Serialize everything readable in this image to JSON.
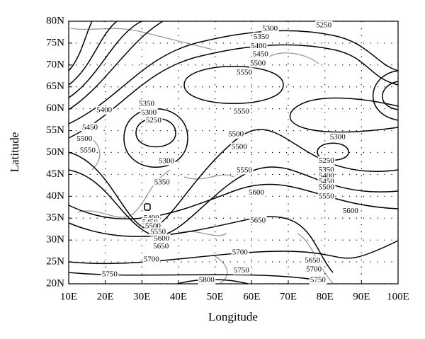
{
  "chart_data": {
    "type": "contour",
    "xlabel": "Longitude",
    "ylabel": "Latitude",
    "xlim": [
      10,
      100
    ],
    "xticks": [
      {
        "value": 10,
        "label": "10E"
      },
      {
        "value": 20,
        "label": "20E"
      },
      {
        "value": 30,
        "label": "30E"
      },
      {
        "value": 40,
        "label": "40E"
      },
      {
        "value": 50,
        "label": "50E"
      },
      {
        "value": 60,
        "label": "60E"
      },
      {
        "value": 70,
        "label": "70E"
      },
      {
        "value": 80,
        "label": "80E"
      },
      {
        "value": 90,
        "label": "90E"
      },
      {
        "value": 100,
        "label": "100E"
      }
    ],
    "ylim": [
      20,
      80
    ],
    "yticks": [
      {
        "value": 20,
        "label": "20N"
      },
      {
        "value": 25,
        "label": "25N"
      },
      {
        "value": 30,
        "label": "30N"
      },
      {
        "value": 35,
        "label": "35N"
      },
      {
        "value": 40,
        "label": "40N"
      },
      {
        "value": 45,
        "label": "45N"
      },
      {
        "value": 50,
        "label": "50N"
      },
      {
        "value": 55,
        "label": "55N"
      },
      {
        "value": 60,
        "label": "60N"
      },
      {
        "value": 65,
        "label": "65N"
      },
      {
        "value": 70,
        "label": "70N"
      },
      {
        "value": 75,
        "label": "75N"
      },
      {
        "value": 80,
        "label": "80N"
      }
    ],
    "grid": true,
    "contour_labels": {
      "x": [
        65.0,
        79.7,
        62.6,
        61.9,
        62.4,
        61.7,
        58.0,
        57.2,
        19.7,
        31.3,
        31.9,
        33.2,
        15.8,
        14.3,
        15.2,
        55.7,
        56.6,
        83.5,
        36.7,
        80.4,
        80.4,
        58.0,
        80.4,
        80.4,
        35.5,
        80.4,
        80.4,
        61.3,
        87.0,
        61.7,
        32.6,
        32.2,
        33.0,
        34.4,
        35.4,
        35.2,
        32.6,
        56.8,
        76.6,
        77.0,
        21.2,
        57.2,
        78.1,
        47.7
      ],
      "y": [
        78.2,
        79.0,
        76.4,
        74.3,
        72.4,
        70.3,
        68.2,
        59.3,
        59.6,
        61.1,
        59.1,
        57.3,
        55.7,
        53.1,
        50.4,
        54.1,
        51.2,
        53.5,
        48.0,
        48.1,
        46.0,
        45.9,
        44.6,
        43.3,
        43.1,
        42.0,
        39.9,
        40.8,
        36.6,
        34.4,
        35.0,
        34.0,
        33.1,
        31.8,
        30.3,
        28.5,
        25.5,
        27.1,
        25.3,
        23.2,
        22.1,
        23.0,
        20.8,
        20.8
      ],
      "values": [
        5300,
        5250,
        5350,
        5400,
        5450,
        5500,
        5550,
        5550,
        5400,
        5350,
        5300,
        5250,
        5450,
        5500,
        5550,
        5500,
        5500,
        5300,
        5300,
        5250,
        5350,
        5550,
        5400,
        5450,
        5350,
        5500,
        5550,
        5600,
        5600,
        5650,
        5400,
        5450,
        5500,
        5550,
        5600,
        5650,
        5700,
        5700,
        5650,
        5700,
        5750,
        5750,
        5750,
        5800
      ]
    }
  }
}
